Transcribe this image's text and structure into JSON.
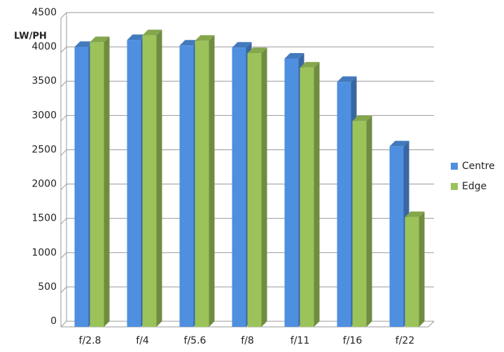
{
  "chart_data": {
    "type": "bar3d",
    "y_label": "LW/PH",
    "categories": [
      "f/2.8",
      "f/4",
      "f/5.6",
      "f/8",
      "f/11",
      "f/16",
      "f/22"
    ],
    "series": [
      {
        "name": "Centre",
        "color": "#4f8fe0",
        "values": [
          4080,
          4180,
          4100,
          4070,
          3910,
          3570,
          2630
        ]
      },
      {
        "name": "Edge",
        "color": "#9bc35a",
        "values": [
          4150,
          4250,
          4170,
          3990,
          3780,
          3000,
          1600
        ]
      }
    ],
    "ylim": [
      0,
      4500
    ],
    "yticks": [
      0,
      500,
      1000,
      1500,
      2000,
      2500,
      3000,
      3500,
      4000,
      4500
    ],
    "grid": true,
    "legend": "right"
  }
}
